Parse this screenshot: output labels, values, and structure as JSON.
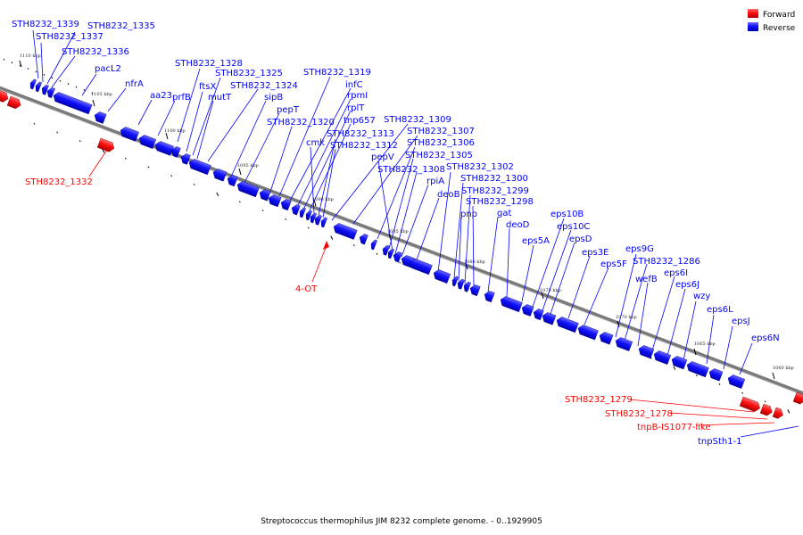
{
  "caption": "Streptococcus thermophilus JIM 8232 complete genome. - 0..1929905",
  "legend": {
    "items": [
      {
        "label": "Forward",
        "color": "#ff0000"
      },
      {
        "label": "Reverse",
        "color": "#0000ff"
      }
    ]
  },
  "ticks": [
    "1110 kbp",
    "1105 kbp",
    "1100 kbp",
    "1095 kbp",
    "1090 kbp",
    "1085 kbp",
    "1080 kbp",
    "1075 kbp",
    "1070 kbp",
    "1065 kbp",
    "1060 kbp"
  ],
  "reverse_labels": [
    "STH8232_1339",
    "STH8232_1337",
    "STH8232_1335",
    "STH8232_1336",
    "pacL2",
    "nfrA",
    "aa23",
    "prfB",
    "STH8232_1328",
    "ftsX",
    "STH8232_1325",
    "mutT",
    "STH8232_1324",
    "sipB",
    "pepT",
    "STH8232_1320",
    "STH8232_1319",
    "infC",
    "rpmI",
    "rplT",
    "tnp657",
    "cmk",
    "STH8232_1313",
    "STH8232_1312",
    "STH8232_1309",
    "STH8232_1307",
    "STH8232_1306",
    "STH8232_1305",
    "pepV",
    "STH8232_1308",
    "rpiA",
    "deoB",
    "STH8232_1302",
    "STH8232_1300",
    "pnp",
    "STH8232_1299",
    "STH8232_1298",
    "gat",
    "deoD",
    "eps5A",
    "eps10B",
    "eps10C",
    "epsD",
    "eps3E",
    "eps5F",
    "eps9G",
    "STH8232_1286",
    "wefB",
    "eps6I",
    "eps6J",
    "wzy",
    "eps6L",
    "epsJ",
    "eps6N",
    "tnpSth1-1"
  ],
  "forward_labels": [
    "STH8232_1332",
    "4-OT",
    "STH8232_1279",
    "STH8232_1278",
    "tnpB-IS1077-like"
  ]
}
